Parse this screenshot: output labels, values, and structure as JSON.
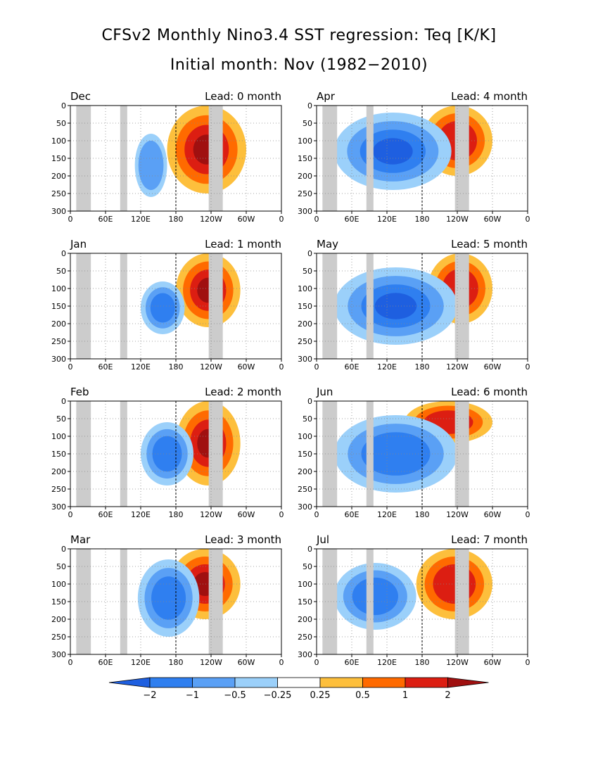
{
  "title": "CFSv2 Monthly Nino3.4 SST regression: Teq [K/K]",
  "subtitle": "Initial month: Nov (1982−2010)",
  "chart_data": {
    "type": "heatmap",
    "title": "CFSv2 Monthly Nino3.4 SST regression: Teq [K/K]",
    "subtitle": "Initial month: Nov (1982−2010)",
    "x_ticks": [
      "0",
      "60E",
      "120E",
      "180",
      "120W",
      "60W",
      "0"
    ],
    "y_ticks": [
      "0",
      "50",
      "100",
      "150",
      "200",
      "250",
      "300"
    ],
    "xlim": [
      0,
      360
    ],
    "ylim": [
      300,
      0
    ],
    "grid": true,
    "colorbar": {
      "labels": [
        "−2",
        "−1",
        "−0.5",
        "−0.25",
        "0.25",
        "0.5",
        "1",
        "2"
      ],
      "colors": [
        "#1e5fe0",
        "#2f7ff0",
        "#5aa0f5",
        "#9bd0fa",
        "#ffffff",
        "#fdbf3c",
        "#ff6a00",
        "#dc1e12",
        "#a01010"
      ]
    },
    "panels": [
      {
        "month": "Dec",
        "lead": "Lead: 0 month",
        "neg_x": [
          110,
          165
        ],
        "neg_depth": [
          80,
          260
        ],
        "neg_core": -0.5,
        "pos_x": [
          165,
          300
        ],
        "pos_depth": [
          0,
          250
        ],
        "pos_core": 2.0
      },
      {
        "month": "Jan",
        "lead": "Lead: 1 month",
        "neg_x": [
          120,
          195
        ],
        "neg_depth": [
          80,
          230
        ],
        "neg_core": -1.0,
        "pos_x": [
          180,
          290
        ],
        "pos_depth": [
          0,
          210
        ],
        "pos_core": 2.0
      },
      {
        "month": "Feb",
        "lead": "Lead: 2 month",
        "neg_x": [
          120,
          210
        ],
        "neg_depth": [
          60,
          240
        ],
        "neg_core": -1.0,
        "pos_x": [
          180,
          290
        ],
        "pos_depth": [
          0,
          240
        ],
        "pos_core": 2.0
      },
      {
        "month": "Mar",
        "lead": "Lead: 3 month",
        "neg_x": [
          115,
          220
        ],
        "neg_depth": [
          30,
          250
        ],
        "neg_core": -1.0,
        "pos_x": [
          170,
          290
        ],
        "pos_depth": [
          0,
          200
        ],
        "pos_core": 2.0
      },
      {
        "month": "Apr",
        "lead": "Lead: 4 month",
        "neg_x": [
          30,
          230
        ],
        "neg_depth": [
          20,
          240
        ],
        "neg_core": -2.0,
        "pos_x": [
          180,
          300
        ],
        "pos_depth": [
          0,
          200
        ],
        "pos_core": 1.0
      },
      {
        "month": "May",
        "lead": "Lead: 5 month",
        "neg_x": [
          30,
          240
        ],
        "neg_depth": [
          40,
          260
        ],
        "neg_core": -2.0,
        "pos_x": [
          190,
          300
        ],
        "pos_depth": [
          0,
          200
        ],
        "pos_core": 1.0
      },
      {
        "month": "Jun",
        "lead": "Lead: 6 month",
        "neg_x": [
          30,
          240
        ],
        "neg_depth": [
          40,
          260
        ],
        "neg_core": -1.0,
        "pos_x": [
          150,
          300
        ],
        "pos_depth": [
          0,
          120
        ],
        "pos_core": 1.0
      },
      {
        "month": "Jul",
        "lead": "Lead: 7 month",
        "neg_x": [
          30,
          170
        ],
        "neg_depth": [
          40,
          230
        ],
        "neg_core": -1.0,
        "pos_x": [
          170,
          300
        ],
        "pos_depth": [
          0,
          200
        ],
        "pos_core": 1.0
      }
    ]
  }
}
